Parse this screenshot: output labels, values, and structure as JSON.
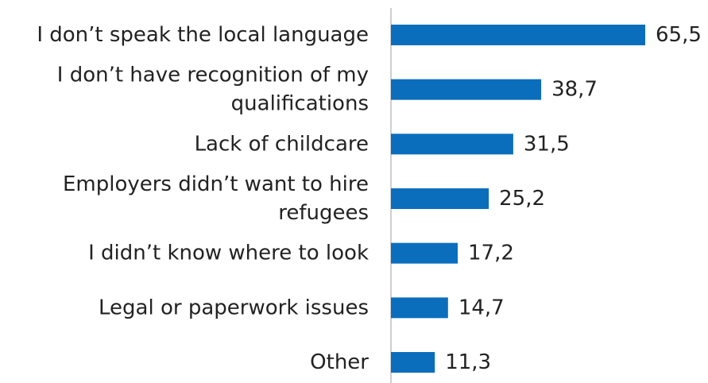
{
  "chart_data": {
    "type": "bar",
    "orientation": "horizontal",
    "categories": [
      [
        "I don’t speak the local language"
      ],
      [
        "I don’t have recognition of my",
        "qualifications"
      ],
      [
        "Lack of childcare"
      ],
      [
        "Employers didn’t want to hire",
        "refugees"
      ],
      [
        "I didn’t know where to look"
      ],
      [
        "Legal or paperwork issues"
      ],
      [
        "Other"
      ]
    ],
    "values": [
      65.5,
      38.7,
      31.5,
      25.2,
      17.2,
      14.7,
      11.3
    ],
    "value_labels": [
      "65,5",
      "38,7",
      "31,5",
      "25,2",
      "17,2",
      "14,7",
      "11,3"
    ],
    "xlim": [
      0,
      65.5
    ],
    "bar_color": "#0a6ebd",
    "axis_color": "#bfbfbf",
    "grid": false,
    "legend": "none",
    "title": "",
    "xlabel": "",
    "ylabel": ""
  }
}
